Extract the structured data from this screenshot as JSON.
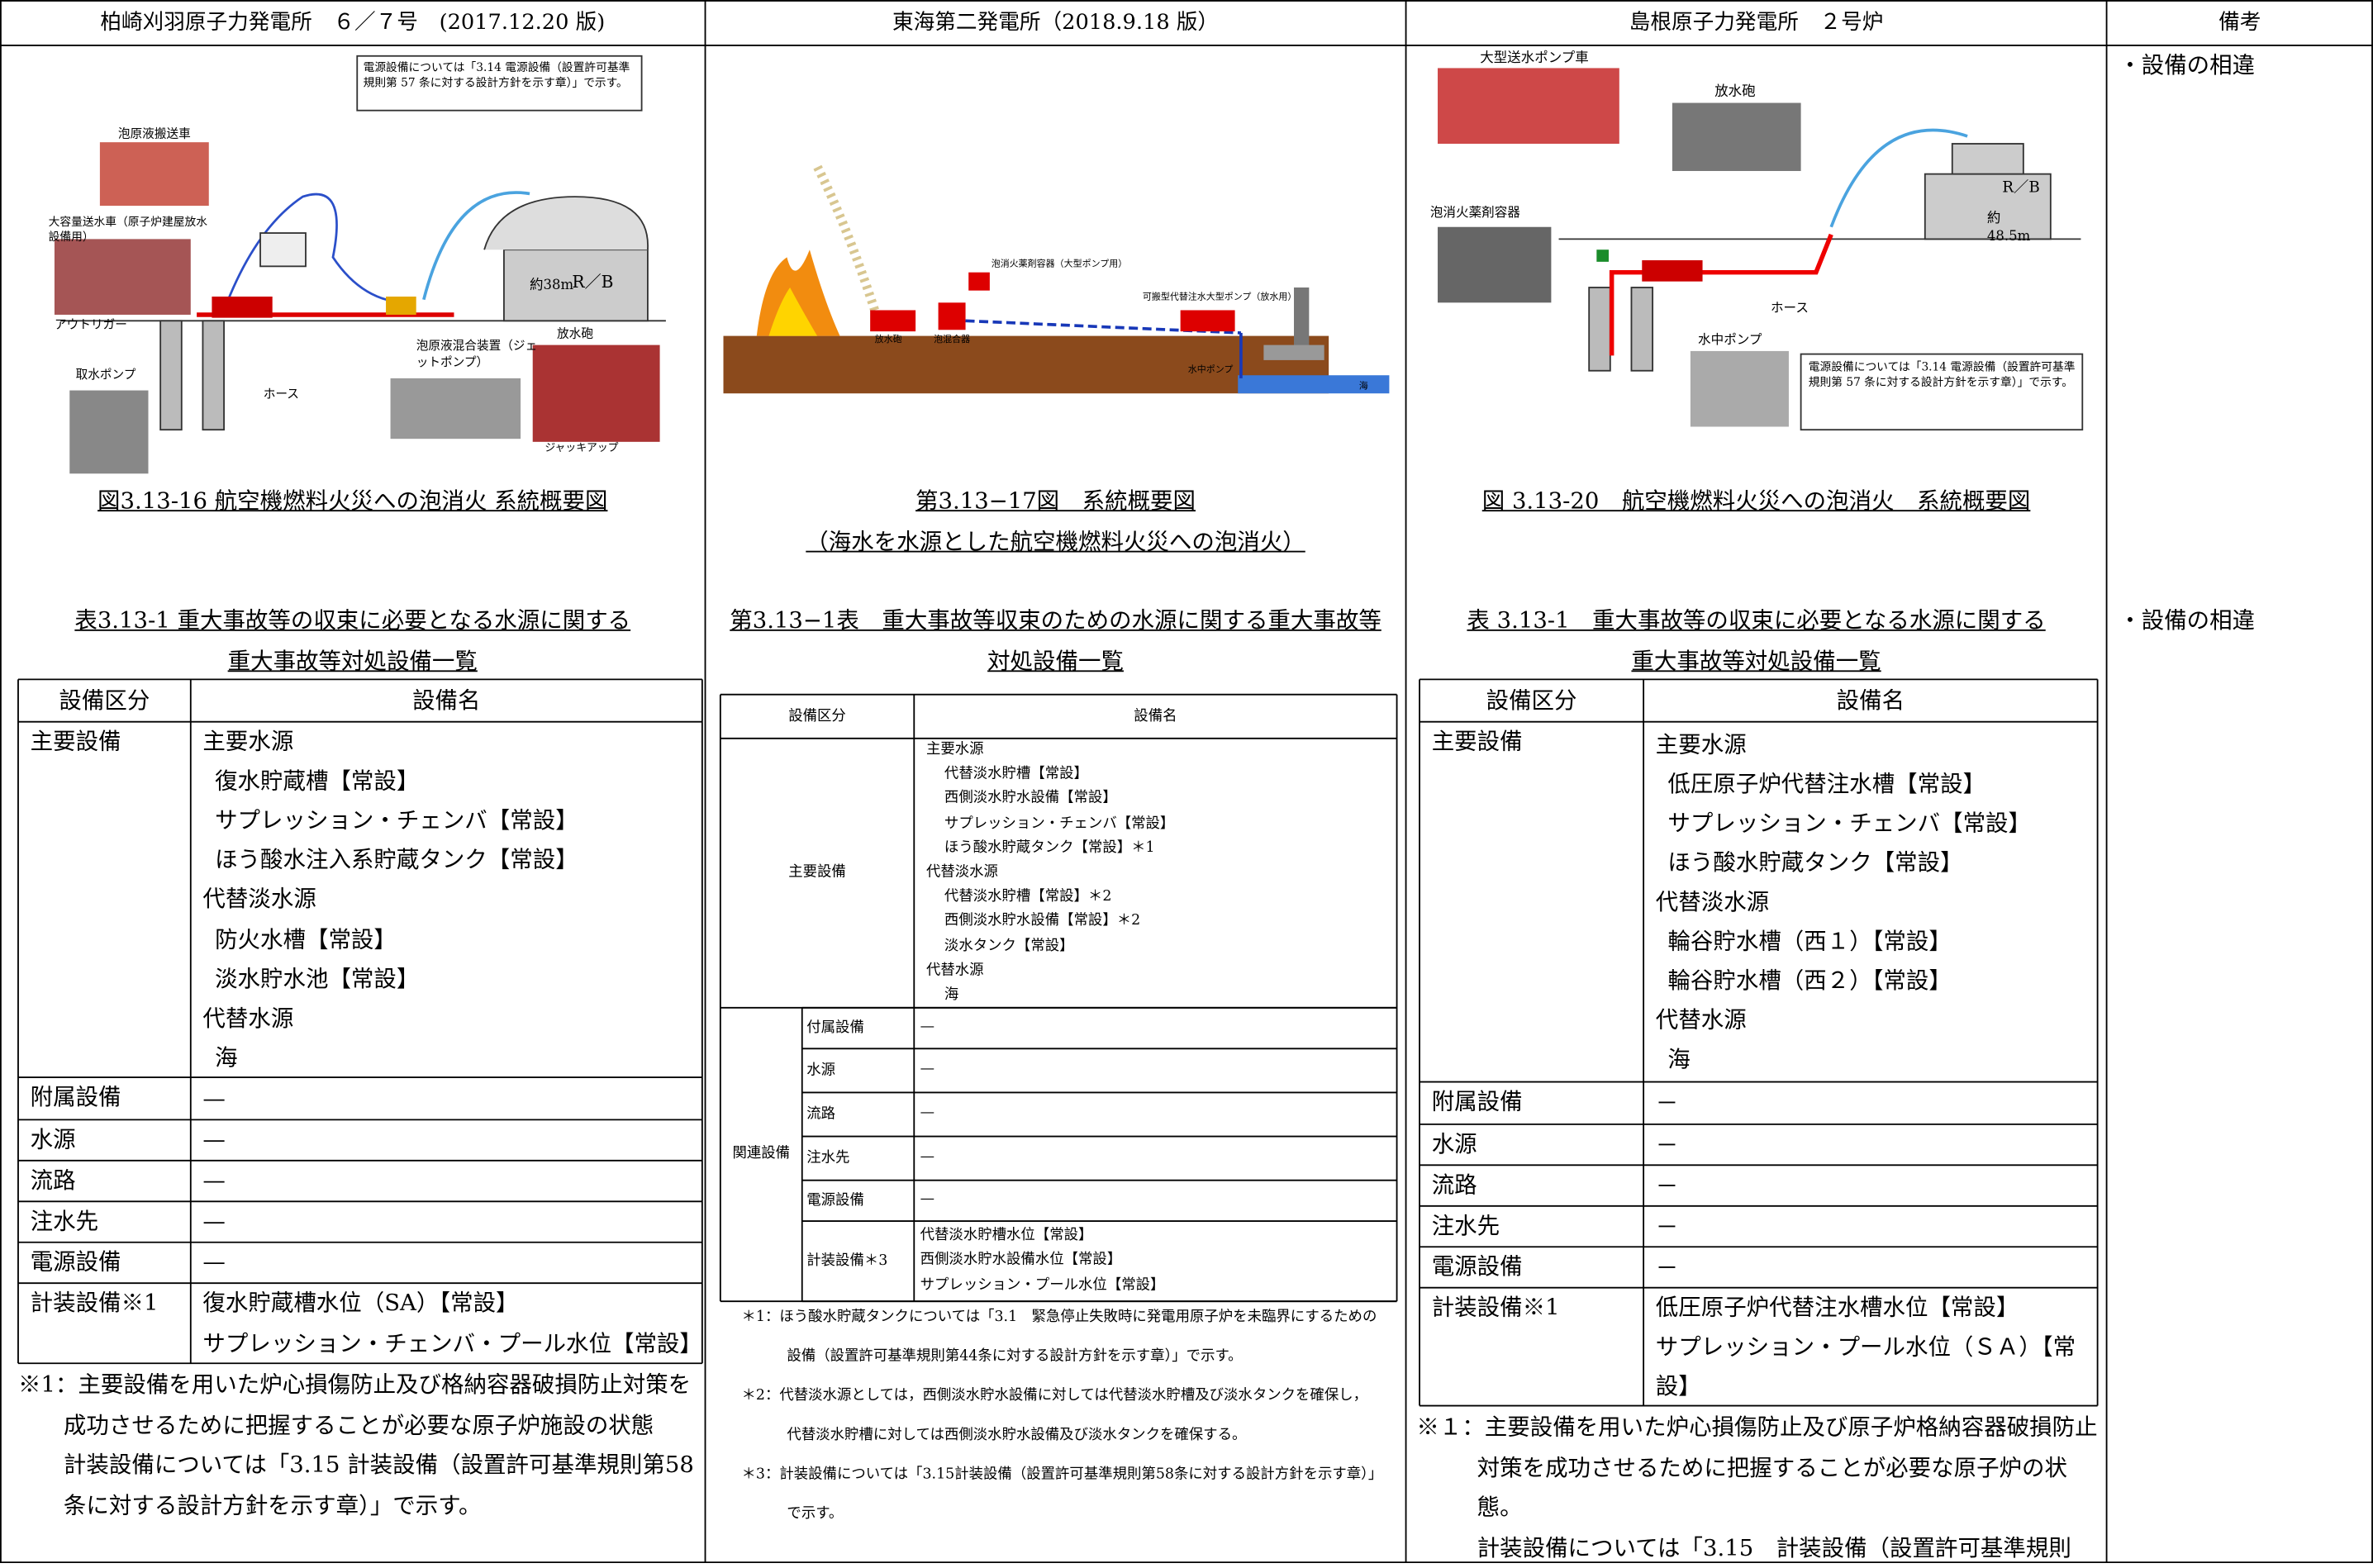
{
  "header": [
    "柏崎刈羽原子力発電所　６／７号　(2017.12.20 版)",
    "東海第二発電所（2018.9.18 版）",
    "島根原子力発電所　２号炉",
    "備考"
  ],
  "remarks": [
    "・設備の相違",
    "・設備の相違"
  ],
  "kk": {
    "figure_labels": [
      "電源設備については「3.14 電源設備（設置許可基準規則第 57 条に対する設計方針を示す章）」で示す。",
      "泡原液搬送車",
      "大容量送水車（原子炉建屋放水設備用）",
      "アウトリガー",
      "取水ポンプ",
      "ホース",
      "泡原液混合装置（ジェットポンプ）",
      "放水砲",
      "ジャッキアップ",
      "約38m",
      "R／B"
    ],
    "caption": [
      "図3.13-16 航空機燃料火災への泡消火 系統概要図"
    ],
    "table_title": [
      "表3.13-1 重大事故等の収束に必要となる水源に関する",
      "重大事故等対処設備一覧"
    ],
    "table_head": [
      "設備区分",
      "設備名"
    ],
    "rows": [
      {
        "label": "主要設備",
        "sources": [
          {
            "name": "主要水源",
            "items": [
              "復水貯蔵槽【常設】",
              "サプレッション・チェンバ【常設】",
              "ほう酸水注入系貯蔵タンク【常設】"
            ]
          },
          {
            "name": "代替淡水源",
            "items": [
              "防火水槽【常設】",
              "淡水貯水池【常設】"
            ]
          },
          {
            "name": "代替水源",
            "items": [
              "海"
            ]
          }
        ]
      },
      {
        "label": "附属設備",
        "items": [
          "—"
        ]
      },
      {
        "label": "水源",
        "items": [
          "—"
        ]
      },
      {
        "label": "流路",
        "items": [
          "—"
        ]
      },
      {
        "label": "注水先",
        "items": [
          "—"
        ]
      },
      {
        "label": "電源設備",
        "items": [
          "—"
        ]
      },
      {
        "label": "計装設備※1",
        "items": [
          "復水貯蔵槽水位（SA）【常設】",
          "サプレッション・チェンバ・プール水位【常設】"
        ]
      }
    ],
    "notes": [
      "※1：主要設備を用いた炉心損傷防止及び格納容器破損防止対策を成功させるために把握することが必要な原子炉施設の状態",
      "計装設備については「3.15 計装設備（設置許可基準規則第58条に対する設計方針を示す章）」で示す。"
    ]
  },
  "tokai": {
    "figure_labels": [
      "泡消火薬剤容器（大型ポンプ用）",
      "可搬型代替注水大型ポンプ（放水用）",
      "放水砲",
      "泡混合器",
      "水中ポンプ",
      "海"
    ],
    "caption": [
      "第3.13−17図　系統概要図",
      "（海水を水源とした航空機燃料火災への泡消火）"
    ],
    "table_title": [
      "第3.13−1表　重大事故等収束のための水源に関する重大事故等",
      "対処設備一覧"
    ],
    "table_head": [
      "設備区分",
      "設備名"
    ],
    "rows": [
      {
        "label": "主要設備",
        "sources": [
          {
            "name": "主要水源",
            "items": [
              "代替淡水貯槽【常設】",
              "西側淡水貯水設備【常設】",
              "サプレッション・チェンバ【常設】",
              "ほう酸水貯蔵タンク【常設】＊1"
            ]
          },
          {
            "name": "代替淡水源",
            "items": [
              "代替淡水貯槽【常設】＊2",
              "西側淡水貯水設備【常設】＊2",
              "淡水タンク【常設】"
            ]
          },
          {
            "name": "代替水源",
            "items": [
              "海"
            ]
          }
        ]
      }
    ],
    "related": {
      "label": "関連設備",
      "rows": [
        {
          "label": "付属設備",
          "items": [
            "—"
          ]
        },
        {
          "label": "水源",
          "items": [
            "—"
          ]
        },
        {
          "label": "流路",
          "items": [
            "—"
          ]
        },
        {
          "label": "注水先",
          "items": [
            "—"
          ]
        },
        {
          "label": "電源設備",
          "items": [
            "—"
          ]
        },
        {
          "label": "計装設備＊3",
          "items": [
            "代替淡水貯槽水位【常設】",
            "西側淡水貯水設備水位【常設】",
            "サプレッション・プール水位【常設】"
          ]
        }
      ]
    },
    "notes": [
      "＊1：ほう酸水貯蔵タンクについては「3.1　緊急停止失敗時に発電用原子炉を未臨界にするための設備（設置許可基準規則第44条に対する設計方針を示す章）」で示す。",
      "＊2：代替淡水源としては，西側淡水貯水設備に対しては代替淡水貯槽及び淡水タンクを確保し，代替淡水貯槽に対しては西側淡水貯水設備及び淡水タンクを確保する。",
      "＊3：計装設備については「3.15計装設備（設置許可基準規則第58条に対する設計方針を示す章）」で示す。"
    ]
  },
  "shimane": {
    "figure_labels": [
      "大型送水ポンプ車",
      "放水砲",
      "泡消火薬剤容器",
      "R／B",
      "約 48.5m",
      "ホース",
      "水中ポンプ",
      "電源設備については「3.14 電源設備（設置許可基準規則第 57 条に対する設計方針を示す章）」で示す。"
    ],
    "caption": [
      "図 3.13-20　航空機燃料火災への泡消火　系統概要図"
    ],
    "table_title": [
      "表 3.13-1　重大事故等の収束に必要となる水源に関する",
      "重大事故等対処設備一覧"
    ],
    "table_head": [
      "設備区分",
      "設備名"
    ],
    "rows": [
      {
        "label": "主要設備",
        "sources": [
          {
            "name": "主要水源",
            "items": [
              "低圧原子炉代替注水槽【常設】",
              "サプレッション・チェンバ【常設】",
              "ほう酸水貯蔵タンク【常設】"
            ]
          },
          {
            "name": "代替淡水源",
            "items": [
              "輪谷貯水槽（西１）【常設】",
              "輪谷貯水槽（西２）【常設】"
            ]
          },
          {
            "name": "代替水源",
            "items": [
              "海"
            ]
          }
        ]
      },
      {
        "label": "附属設備",
        "items": [
          "－"
        ]
      },
      {
        "label": "水源",
        "items": [
          "－"
        ]
      },
      {
        "label": "流路",
        "items": [
          "－"
        ]
      },
      {
        "label": "注水先",
        "items": [
          "－"
        ]
      },
      {
        "label": "電源設備",
        "items": [
          "－"
        ]
      },
      {
        "label": "計装設備※1",
        "items": [
          "低圧原子炉代替注水槽水位【常設】",
          "サプレッション・プール水位（ＳＡ）【常設】"
        ]
      }
    ],
    "notes": [
      "※１：主要設備を用いた炉心損傷防止及び原子炉格納容器破損防止対策を成功させるために把握することが必要な原子炉の状態。",
      "計装設備については「3.15　計装設備（設置許可基準規則"
    ]
  }
}
